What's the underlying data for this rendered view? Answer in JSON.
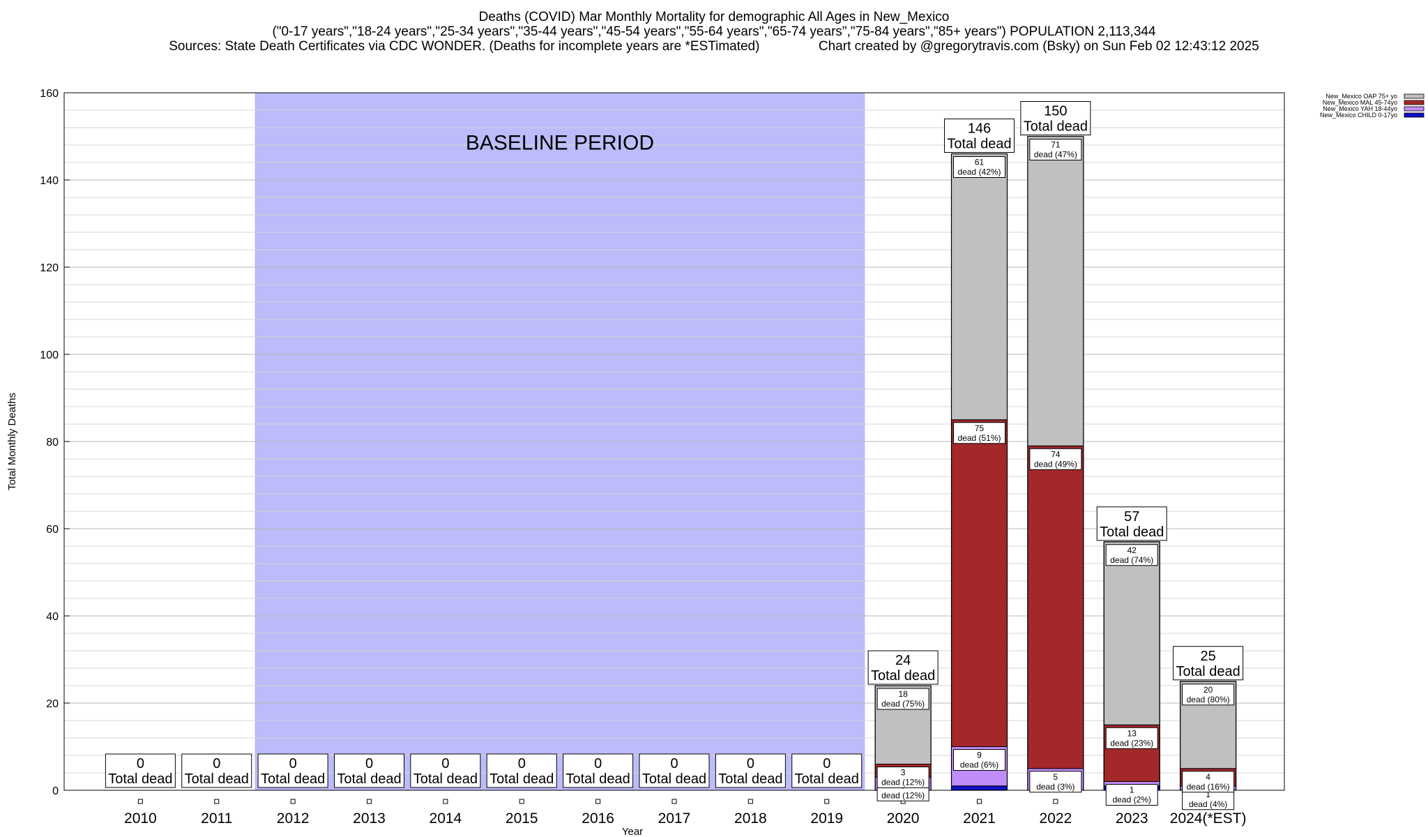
{
  "header": {
    "title": "Deaths (COVID) Mar Monthly Mortality for demographic All Ages in New_Mexico",
    "subtitle": "(\"0-17 years\",\"18-24 years\",\"25-34 years\",\"35-44 years\",\"45-54 years\",\"55-64 years\",\"65-74 years\",\"75-84 years\",\"85+ years\") POPULATION 2,113,344",
    "source": "Sources: State Death Certificates via CDC WONDER. (Deaths for incomplete years are *ESTimated)                Chart created by @gregorytravis.com (Bsky) on Sun Feb 02 12:43:12 2025"
  },
  "chart_data": {
    "type": "bar",
    "stacked": true,
    "title": "Deaths (COVID) Mar Monthly Mortality for demographic All Ages in New_Mexico",
    "xlabel": "Year",
    "ylabel": "Total Monthly Deaths",
    "ylim": [
      0,
      160
    ],
    "yticks": [
      0,
      20,
      40,
      60,
      80,
      100,
      120,
      140,
      160
    ],
    "categories": [
      "2010",
      "2011",
      "2012",
      "2013",
      "2014",
      "2015",
      "2016",
      "2017",
      "2018",
      "2019",
      "2020",
      "2021",
      "2022",
      "2023",
      "2024(*EST)"
    ],
    "totals": [
      0,
      0,
      0,
      0,
      0,
      0,
      0,
      0,
      0,
      0,
      24,
      146,
      150,
      57,
      25
    ],
    "total_caption": "Total dead",
    "segment_caption": "dead",
    "series": [
      {
        "name": "New_Mexico CHILD 0-17yo",
        "color": "#1010c8",
        "values": [
          0,
          0,
          0,
          0,
          0,
          0,
          0,
          0,
          0,
          0,
          0,
          1,
          0,
          1,
          0
        ]
      },
      {
        "name": "New_Mexico YAH 18-44yo",
        "color": "#c08cf8",
        "values": [
          0,
          0,
          0,
          0,
          0,
          0,
          0,
          0,
          0,
          0,
          3,
          9,
          5,
          1,
          1
        ]
      },
      {
        "name": "New_Mexico MAL 45-74yo",
        "color": "#a3282a",
        "values": [
          0,
          0,
          0,
          0,
          0,
          0,
          0,
          0,
          0,
          0,
          3,
          75,
          74,
          13,
          4
        ]
      },
      {
        "name": "New_Mexico OAP 75+ yo",
        "color": "#c0c0c0",
        "values": [
          0,
          0,
          0,
          0,
          0,
          0,
          0,
          0,
          0,
          0,
          18,
          61,
          71,
          42,
          20
        ]
      }
    ],
    "segment_labels": [
      {
        "year": "2020",
        "series": 1,
        "count": "3",
        "pct": "(12%)"
      },
      {
        "year": "2020",
        "series": 2,
        "count": "3",
        "pct": "(12%)"
      },
      {
        "year": "2020",
        "series": 3,
        "count": "18",
        "pct": "(75%)"
      },
      {
        "year": "2021",
        "series": 1,
        "count": "9",
        "pct": "(6%)"
      },
      {
        "year": "2021",
        "series": 2,
        "count": "75",
        "pct": "(51%)"
      },
      {
        "year": "2021",
        "series": 3,
        "count": "61",
        "pct": "(42%)"
      },
      {
        "year": "2022",
        "series": 1,
        "count": "5",
        "pct": "(3%)"
      },
      {
        "year": "2022",
        "series": 2,
        "count": "74",
        "pct": "(49%)"
      },
      {
        "year": "2022",
        "series": 3,
        "count": "71",
        "pct": "(47%)"
      },
      {
        "year": "2023",
        "series": 1,
        "count": "1",
        "pct": "(2%)"
      },
      {
        "year": "2023",
        "series": 2,
        "count": "13",
        "pct": "(23%)"
      },
      {
        "year": "2023",
        "series": 3,
        "count": "42",
        "pct": "(74%)"
      },
      {
        "year": "2024(*EST)",
        "series": 1,
        "count": "1",
        "pct": "(4%)"
      },
      {
        "year": "2024(*EST)",
        "series": 2,
        "count": "4",
        "pct": "(16%)"
      },
      {
        "year": "2024(*EST)",
        "series": 3,
        "count": "20",
        "pct": "(80%)"
      }
    ],
    "baseline": {
      "label": "BASELINE PERIOD",
      "from": "2012",
      "to": "2019",
      "color": "#bcbcfb"
    },
    "grid": true,
    "legend_position": "top-right",
    "legend_order": [
      3,
      2,
      1,
      0
    ]
  }
}
